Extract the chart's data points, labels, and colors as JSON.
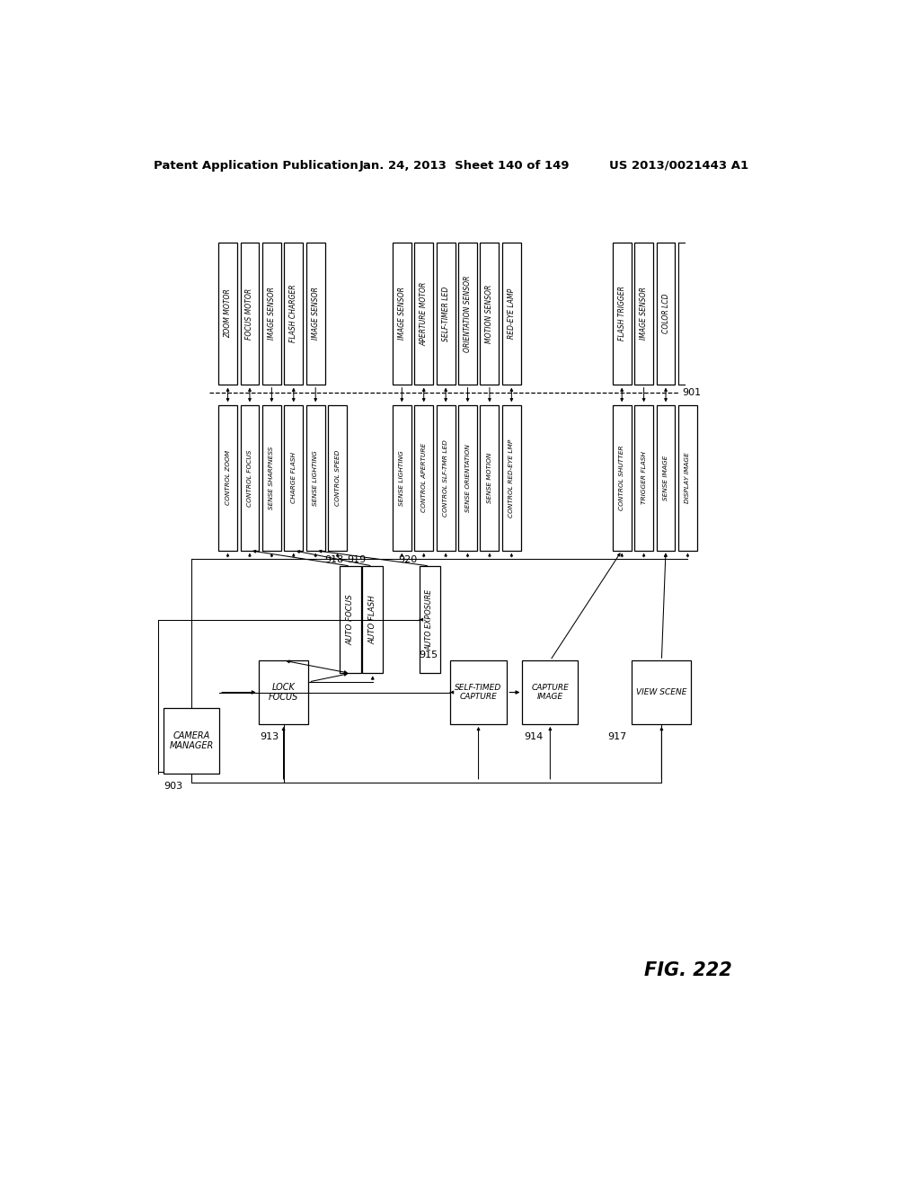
{
  "header_left": "Patent Application Publication",
  "header_mid": "Jan. 24, 2013  Sheet 140 of 149",
  "header_right": "US 2013/0021443 A1",
  "fig_label": "FIG. 222",
  "bg_color": "#ffffff",
  "hw_g1": [
    "ZOOM MOTOR",
    "FOCUS MOTOR",
    "IMAGE SENSOR",
    "FLASH CHARGER",
    "IMAGE SENSOR"
  ],
  "hw_g2": [
    "IMAGE SENSOR",
    "APERTURE MOTOR",
    "SELF-TIMER LED",
    "ORIENTATION SENSOR",
    "MOTION SENSOR",
    "RED-EYE LAMP"
  ],
  "hw_g3": [
    "FLASH TRIGGER",
    "IMAGE SENSOR",
    "COLOR LCD"
  ],
  "sw_all": [
    "CONTROL ZOOM",
    "CONTROL FOCUS",
    "SENSE SHARPNESS",
    "CHARGE FLASH",
    "SENSE LIGHTING",
    "CONTROL SPEED",
    "SENSE LIGHTING",
    "CONTROL APERTURE",
    "CONTROL SLF-TMR LED",
    "SENSE ORIENTATION",
    "SENSE MOTION",
    "CONTROL RED-EYE LMP",
    "CONTROL SHUTTER",
    "TRIGGER FLASH",
    "SENSE IMAGE",
    "DISPLAY IMAGE"
  ],
  "hw_g1_bidir": [
    true,
    true,
    false,
    true,
    false
  ],
  "hw_g2_bidir": [
    false,
    true,
    true,
    false,
    false,
    true
  ],
  "hw_g3_bidir": [
    true,
    false,
    true
  ]
}
